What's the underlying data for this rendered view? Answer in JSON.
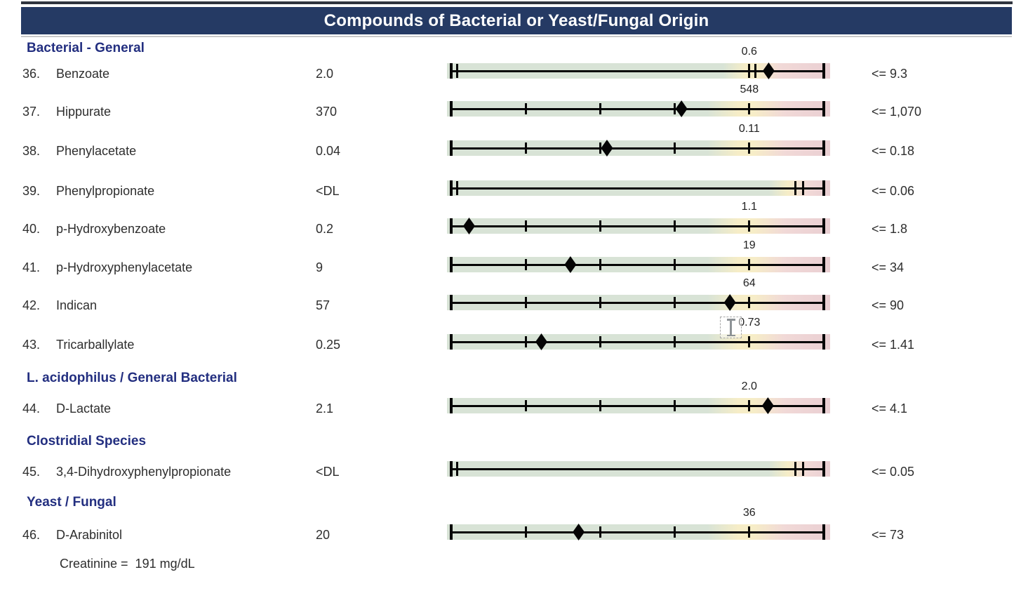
{
  "header": {
    "title": "Compounds of Bacterial or Yeast/Fungal Origin"
  },
  "sections": [
    {
      "label": "Bacterial - General",
      "rows": [
        {
          "num": "36.",
          "name": "Benzoate",
          "value": "2.0",
          "limit": "<= 9.3",
          "ref_label": "0.6",
          "marker": 0.852,
          "bar_type": "skewed",
          "ticks": [
            0,
            0.016,
            0.8,
            0.816,
            1
          ]
        },
        {
          "num": "37.",
          "name": "Hippurate",
          "value": "370",
          "limit": "<= 1,070",
          "ref_label": "548",
          "marker": 0.618,
          "bar_type": "standard",
          "ticks": [
            0,
            0.2,
            0.4,
            0.6,
            0.8,
            1
          ]
        },
        {
          "num": "38.",
          "name": "Phenylacetate",
          "value": "0.04",
          "limit": "<= 0.18",
          "ref_label": "0.11",
          "marker": 0.418,
          "bar_type": "standard",
          "ticks": [
            0,
            0.2,
            0.4,
            0.6,
            0.8,
            1
          ]
        },
        {
          "num": "39.",
          "name": "Phenylpropionate",
          "value": "<DL",
          "limit": "<= 0.06",
          "ref_label": "",
          "marker": null,
          "bar_type": "dl",
          "ticks": [
            0,
            0.016,
            0.923,
            0.945,
            1
          ]
        },
        {
          "num": "40.",
          "name": "p-Hydroxybenzoate",
          "value": "0.2",
          "limit": "<= 1.8",
          "ref_label": "1.1",
          "marker": 0.048,
          "bar_type": "standard",
          "ticks": [
            0,
            0.2,
            0.4,
            0.6,
            0.8,
            1
          ]
        },
        {
          "num": "41.",
          "name": "p-Hydroxyphenylacetate",
          "value": "9",
          "limit": "<= 34",
          "ref_label": "19",
          "marker": 0.32,
          "bar_type": "standard",
          "ticks": [
            0,
            0.2,
            0.4,
            0.6,
            0.8,
            1
          ]
        },
        {
          "num": "42.",
          "name": "Indican",
          "value": "57",
          "limit": "<= 90",
          "ref_label": "64",
          "marker": 0.748,
          "bar_type": "standard",
          "ticks": [
            0,
            0.2,
            0.4,
            0.6,
            0.8,
            1
          ]
        },
        {
          "num": "43.",
          "name": "Tricarballylate",
          "value": "0.25",
          "limit": "<= 1.41",
          "ref_label": "0.73",
          "marker": 0.242,
          "bar_type": "standard",
          "ticks": [
            0,
            0.2,
            0.4,
            0.6,
            0.8,
            1
          ],
          "cursor": true
        }
      ]
    },
    {
      "label": "L. acidophilus / General Bacterial",
      "rows": [
        {
          "num": "44.",
          "name": "D-Lactate",
          "value": "2.1",
          "limit": "<= 4.1",
          "ref_label": "2.0",
          "marker": 0.85,
          "bar_type": "standard",
          "ticks": [
            0,
            0.2,
            0.4,
            0.6,
            0.8,
            1
          ]
        }
      ]
    },
    {
      "label": "Clostridial Species",
      "rows": [
        {
          "num": "45.",
          "name": "3,4-Dihydroxyphenylpropionate",
          "value": "<DL",
          "limit": "<= 0.05",
          "ref_label": "",
          "marker": null,
          "bar_type": "dl",
          "ticks": [
            0,
            0.016,
            0.923,
            0.945,
            1
          ]
        }
      ]
    },
    {
      "label": "Yeast / Fungal",
      "rows": [
        {
          "num": "46.",
          "name": "D-Arabinitol",
          "value": "20",
          "limit": "<= 73",
          "ref_label": "36",
          "marker": 0.342,
          "bar_type": "standard",
          "ticks": [
            0,
            0.2,
            0.4,
            0.6,
            0.8,
            1
          ]
        }
      ]
    }
  ],
  "footnote": "Creatinine =  191 mg/dL",
  "colors": {
    "header_bg": "#253a64",
    "section_heading": "#232f80",
    "bar_green": "#d8e3d6",
    "bar_yellow": "#f6edc7",
    "bar_pink_light": "#f1d9d7",
    "bar_pink": "#eacfd3",
    "marker_black": "#050505",
    "cursor_gray": "#8d9296"
  }
}
